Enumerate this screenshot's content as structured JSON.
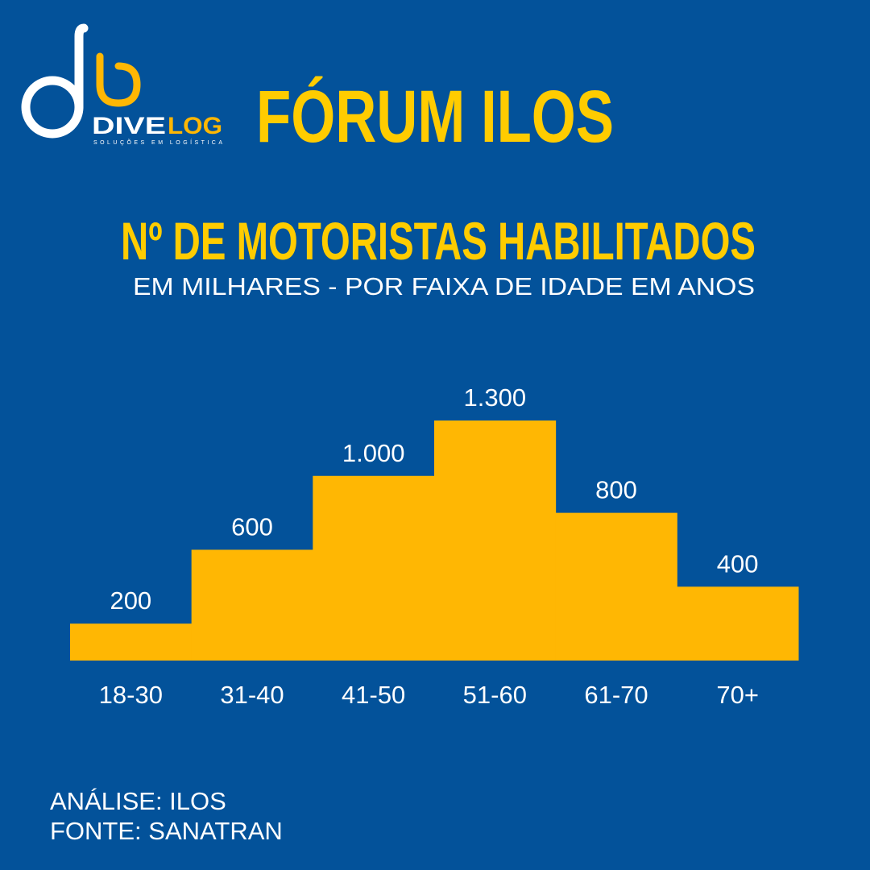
{
  "header": {
    "title": "FÓRUM ILOS"
  },
  "logo": {
    "name_first": "DIVE",
    "name_second": "LOG",
    "tagline": "SOLUÇÕES EM LOGÍSTICA"
  },
  "chart_data": {
    "type": "bar",
    "title": "Nº DE MOTORISTAS HABILITADOS",
    "subtitle": "EM MILHARES - POR FAIXA DE IDADE EM ANOS",
    "categories": [
      "18-30",
      "31-40",
      "41-50",
      "51-60",
      "61-70",
      "70+"
    ],
    "values": [
      200,
      600,
      1000,
      1300,
      800,
      400
    ],
    "value_labels": [
      "200",
      "600",
      "1.000",
      "1.300",
      "800",
      "400"
    ],
    "color": "#ffb703"
  },
  "footer": {
    "analysis": "ANÁLISE: ILOS",
    "source": "FONTE: SANATRAN"
  }
}
